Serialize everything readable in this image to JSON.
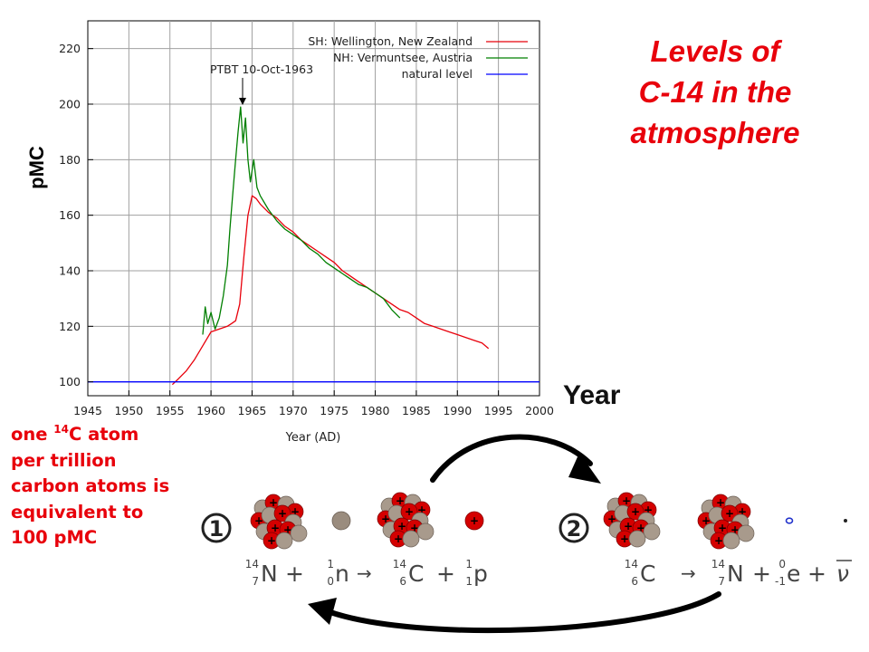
{
  "chart_data": {
    "type": "line",
    "ylabel": "pMC",
    "xlabel": "Year (AD)",
    "xlim": [
      1945,
      2000
    ],
    "ylim": [
      95,
      230
    ],
    "x_ticks": [
      1945,
      1950,
      1955,
      1960,
      1965,
      1970,
      1975,
      1980,
      1985,
      1990,
      1995,
      2000
    ],
    "y_ticks": [
      100,
      120,
      140,
      160,
      180,
      200,
      220
    ],
    "grid": true,
    "legend_position": "top-right",
    "annotation": {
      "text": "PTBT 10-Oct-1963",
      "x": 1963.8
    },
    "series": [
      {
        "name": "SH: Wellington, New Zealand",
        "color": "#e8000b",
        "x": [
          1955.3,
          1956,
          1957,
          1958,
          1959,
          1960,
          1961,
          1962,
          1962.5,
          1963,
          1963.5,
          1964,
          1964.5,
          1965,
          1965.5,
          1966,
          1967,
          1968,
          1969,
          1970,
          1971,
          1972,
          1973,
          1974,
          1975,
          1976,
          1977,
          1978,
          1979,
          1980,
          1981,
          1982,
          1983,
          1984,
          1985,
          1986,
          1987,
          1988,
          1989,
          1990,
          1991,
          1992,
          1993,
          1993.8
        ],
        "y": [
          99,
          101,
          104,
          108,
          113,
          118,
          119,
          120,
          121,
          122,
          128,
          145,
          160,
          167,
          166,
          164,
          161,
          159,
          156,
          154,
          151,
          149,
          147,
          145,
          143,
          140,
          138,
          136,
          134,
          132,
          130,
          128,
          126,
          125,
          123,
          121,
          120,
          119,
          118,
          117,
          116,
          115,
          114,
          112
        ]
      },
      {
        "name": "NH: Vermuntsee, Austria",
        "color": "#007f00",
        "x": [
          1959,
          1959.3,
          1959.6,
          1960,
          1960.5,
          1961,
          1961.5,
          1962,
          1962.3,
          1962.6,
          1963,
          1963.3,
          1963.6,
          1963.9,
          1964.2,
          1964.5,
          1964.8,
          1965.2,
          1965.6,
          1966,
          1967,
          1968,
          1969,
          1970,
          1971,
          1972,
          1973,
          1974,
          1975,
          1976,
          1977,
          1978,
          1979,
          1980,
          1981,
          1982,
          1983
        ],
        "y": [
          117,
          127,
          121,
          125,
          119,
          123,
          131,
          142,
          155,
          166,
          180,
          190,
          199,
          186,
          195,
          180,
          172,
          180,
          170,
          167,
          162,
          158,
          155,
          153,
          151,
          148,
          146,
          143,
          141,
          139,
          137,
          135,
          134,
          132,
          130,
          126,
          123
        ]
      },
      {
        "name": "natural level",
        "color": "#0000ff",
        "x": [
          1945,
          2000
        ],
        "y": [
          100,
          100
        ]
      }
    ]
  },
  "page": {
    "title_lines": [
      "Levels of",
      "C-14 in the",
      "atmosphere"
    ],
    "year_label": "Year",
    "note": {
      "line1_pre": "one ",
      "line1_sup": "14",
      "line1_post": "C atom",
      "line2": "per trillion",
      "line3": "carbon atoms is",
      "line4": "equivalent to",
      "line5": "100 pMC"
    },
    "colors": {
      "accent_red": "#e8000b",
      "proton_red": "#d40000",
      "neutron_tan": "#a89a8c"
    }
  },
  "reactions": {
    "step1_number": "1",
    "step2_number": "2",
    "eq1": {
      "n_sym": "N",
      "n_mass": "14",
      "n_z": "7",
      "plus1": "+",
      "neutron_sym": "n",
      "neutron_mass": "1",
      "neutron_z": "0",
      "arrow": "→",
      "c_sym": "C",
      "c_mass": "14",
      "c_z": "6",
      "plus2": "+",
      "p_sym": "p",
      "p_mass": "1",
      "p_z": "1"
    },
    "eq2": {
      "c_sym": "C",
      "c_mass": "14",
      "c_z": "6",
      "arrow": "→",
      "n_sym": "N",
      "n_mass": "14",
      "n_z": "7",
      "plus1": "+",
      "e_sym": "e",
      "e_mass": "0",
      "e_z": "-1",
      "plus2": "+",
      "nu_sym": "ν"
    },
    "nucleon_plus": "+"
  }
}
